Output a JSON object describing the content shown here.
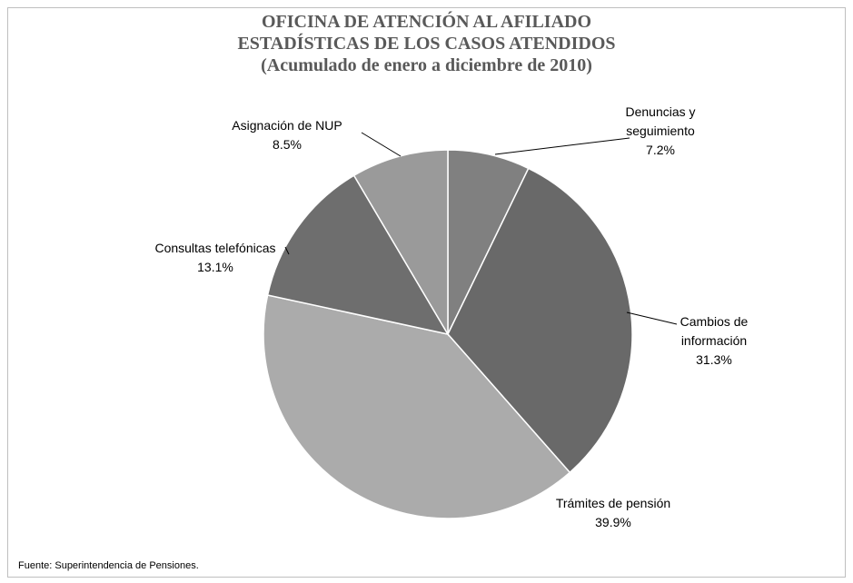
{
  "chart_data": {
    "type": "pie",
    "title": [
      "OFICINA DE ATENCIÓN  AL AFILIADO",
      "ESTADÍSTICAS DE LOS CASOS ATENDIDOS",
      "(Acumulado de enero a diciembre de 2010)"
    ],
    "categories": [
      "Denuncias y seguimiento",
      "Cambios de información",
      "Trámites de pensión",
      "Consultas telefónicas",
      "Asignación de NUP"
    ],
    "values": [
      7.2,
      31.3,
      39.9,
      13.1,
      8.5
    ],
    "value_labels": [
      "7.2%",
      "31.3%",
      "39.9%",
      "13.1%",
      "8.5%"
    ],
    "colors": [
      "#808080",
      "#696969",
      "#ababab",
      "#6e6e6e",
      "#9a9a9a"
    ],
    "source": "Fuente: Superintendencia de Pensiones."
  }
}
